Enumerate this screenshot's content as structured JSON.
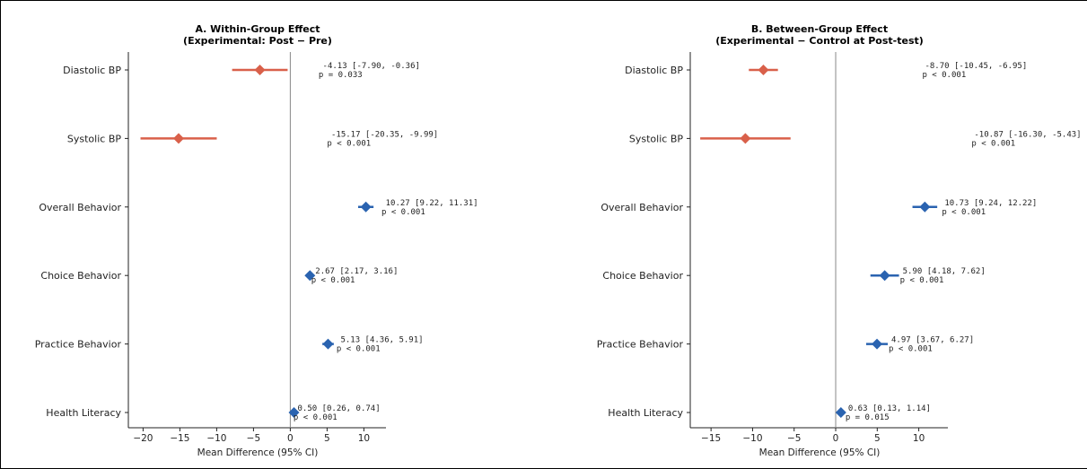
{
  "chart_data": [
    {
      "type": "forest",
      "title_line1": "A. Within-Group Effect",
      "title_line2": "(Experimental: Post − Pre)",
      "xlabel": "Mean Difference (95% CI)",
      "xlim": [
        -22,
        13
      ],
      "xticks": [
        -20,
        -15,
        -10,
        -5,
        0,
        5,
        10
      ],
      "outcomes": [
        {
          "label": "Diastolic BP",
          "estimate": -4.13,
          "ci": [
            -7.9,
            -0.36
          ],
          "ci_text": "-4.13 [-7.90, -0.36]",
          "p_text": "p = 0.033",
          "color": "#d9604a"
        },
        {
          "label": "Systolic BP",
          "estimate": -15.17,
          "ci": [
            -20.35,
            -9.99
          ],
          "ci_text": "-15.17 [-20.35, -9.99]",
          "p_text": "p < 0.001",
          "color": "#d9604a"
        },
        {
          "label": "Overall Behavior",
          "estimate": 10.27,
          "ci": [
            9.22,
            11.31
          ],
          "ci_text": "10.27 [9.22, 11.31]",
          "p_text": "p < 0.001",
          "color": "#2a63b0"
        },
        {
          "label": "Choice Behavior",
          "estimate": 2.67,
          "ci": [
            2.17,
            3.16
          ],
          "ci_text": "2.67 [2.17, 3.16]",
          "p_text": "p < 0.001",
          "color": "#2a63b0"
        },
        {
          "label": "Practice Behavior",
          "estimate": 5.13,
          "ci": [
            4.36,
            5.91
          ],
          "ci_text": "5.13 [4.36, 5.91]",
          "p_text": "p < 0.001",
          "color": "#2a63b0"
        },
        {
          "label": "Health Literacy",
          "estimate": 0.5,
          "ci": [
            0.26,
            0.74
          ],
          "ci_text": "0.50 [0.26, 0.74]",
          "p_text": "p < 0.001",
          "color": "#2a63b0"
        }
      ]
    },
    {
      "type": "forest",
      "title_line1": "B. Between-Group Effect",
      "title_line2": "(Experimental − Control at Post-test)",
      "xlabel": "Mean Difference (95% CI)",
      "xlim": [
        -17.5,
        13.5
      ],
      "xticks": [
        -15,
        -10,
        -5,
        0,
        5,
        10
      ],
      "outcomes": [
        {
          "label": "Diastolic BP",
          "estimate": -8.7,
          "ci": [
            -10.45,
            -6.95
          ],
          "ci_text": "-8.70 [-10.45, -6.95]",
          "p_text": "p < 0.001",
          "color": "#d9604a"
        },
        {
          "label": "Systolic BP",
          "estimate": -10.87,
          "ci": [
            -16.3,
            -5.43
          ],
          "ci_text": "-10.87 [-16.30, -5.43]",
          "p_text": "p < 0.001",
          "color": "#d9604a"
        },
        {
          "label": "Overall Behavior",
          "estimate": 10.73,
          "ci": [
            9.24,
            12.22
          ],
          "ci_text": "10.73 [9.24, 12.22]",
          "p_text": "p < 0.001",
          "color": "#2a63b0"
        },
        {
          "label": "Choice Behavior",
          "estimate": 5.9,
          "ci": [
            4.18,
            7.62
          ],
          "ci_text": "5.90 [4.18, 7.62]",
          "p_text": "p < 0.001",
          "color": "#2a63b0"
        },
        {
          "label": "Practice Behavior",
          "estimate": 4.97,
          "ci": [
            3.67,
            6.27
          ],
          "ci_text": "4.97 [3.67, 6.27]",
          "p_text": "p < 0.001",
          "color": "#2a63b0"
        },
        {
          "label": "Health Literacy",
          "estimate": 0.63,
          "ci": [
            0.13,
            1.14
          ],
          "ci_text": "0.63 [0.13, 1.14]",
          "p_text": "p = 0.015",
          "color": "#2a63b0"
        }
      ]
    }
  ]
}
